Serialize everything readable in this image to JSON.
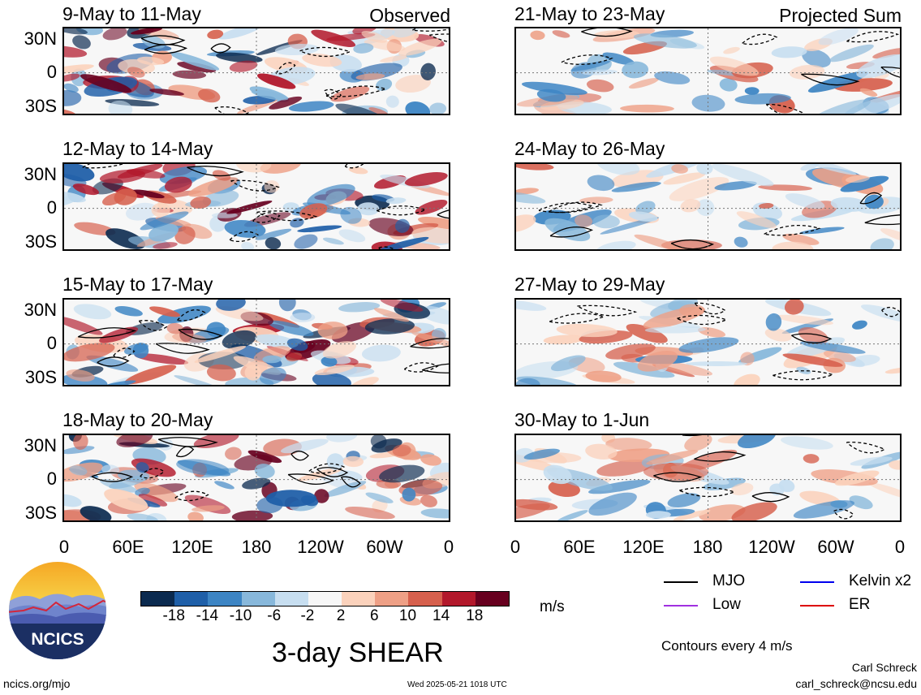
{
  "panels_left": [
    {
      "title": "9-May to 11-May",
      "tag": "Observed"
    },
    {
      "title": "12-May to 14-May",
      "tag": ""
    },
    {
      "title": "15-May to 17-May",
      "tag": ""
    },
    {
      "title": "18-May to 20-May",
      "tag": ""
    }
  ],
  "panels_right": [
    {
      "title": "21-May to 23-May",
      "tag": "Projected Sum"
    },
    {
      "title": "24-May to 26-May",
      "tag": ""
    },
    {
      "title": "27-May to 29-May",
      "tag": ""
    },
    {
      "title": "30-May to 1-Jun",
      "tag": ""
    }
  ],
  "chart_data": {
    "type": "heatmap",
    "variable_title": "3-day SHEAR",
    "units": "m/s",
    "y_ticks": [
      "30N",
      "0",
      "30S"
    ],
    "x_ticks": [
      "0",
      "60E",
      "120E",
      "180",
      "120W",
      "60W",
      "0"
    ],
    "colorbar": {
      "ticks": [
        "-18",
        "-14",
        "-10",
        "-6",
        "-2",
        "2",
        "6",
        "10",
        "14",
        "18"
      ],
      "colors": [
        "#0b2a4f",
        "#1f5fa8",
        "#3d85c4",
        "#88b8db",
        "#c7def0",
        "#f7f7f7",
        "#fbd2bc",
        "#eea086",
        "#d6604d",
        "#b2182b",
        "#67001f"
      ]
    },
    "contour_note": "Contours every 4 m/s",
    "legend": [
      {
        "label": "MJO",
        "color": "#000000"
      },
      {
        "label": "Kelvin x2",
        "color": "#0000ee"
      },
      {
        "label": "Low",
        "color": "#a030e0"
      },
      {
        "label": "ER",
        "color": "#dd0000"
      }
    ]
  },
  "logo": {
    "text": "NCICS"
  },
  "footer": {
    "site": "ncics.org/mjo",
    "timestamp": "Wed 2025-05-21 1018 UTC",
    "author": "Carl Schreck",
    "email": "carl_schreck@ncsu.edu"
  }
}
